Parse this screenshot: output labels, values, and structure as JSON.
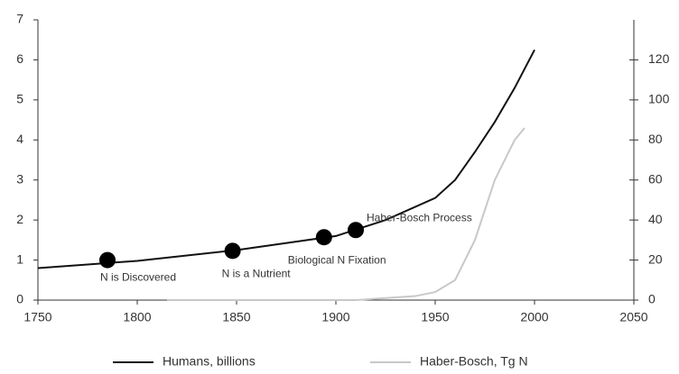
{
  "chart_data": {
    "type": "line",
    "xlim": [
      1750,
      2050
    ],
    "xticks": [
      1750,
      1800,
      1850,
      1900,
      1950,
      2000,
      2050
    ],
    "ylim": [
      0,
      7
    ],
    "yticks": [
      0,
      1,
      2,
      3,
      4,
      5,
      6,
      7
    ],
    "y2lim": [
      0,
      140
    ],
    "y2ticks": [
      0,
      20,
      40,
      60,
      80,
      100,
      120
    ],
    "series": [
      {
        "name": "Humans, billions",
        "color": "#111111",
        "x": [
          1750,
          1800,
          1850,
          1900,
          1925,
          1950,
          1960,
          1970,
          1980,
          1990,
          2000
        ],
        "values": [
          0.8,
          0.98,
          1.25,
          1.6,
          2.0,
          2.55,
          3.0,
          3.7,
          4.45,
          5.3,
          6.25
        ]
      },
      {
        "name": "Haber-Bosch, Tg N",
        "color": "#c8c8c8",
        "axis": "y2",
        "x": [
          1815,
          1910,
          1940,
          1950,
          1960,
          1970,
          1980,
          1990,
          1995
        ],
        "values": [
          0,
          0,
          2,
          4,
          10,
          30,
          60,
          80,
          86
        ]
      }
    ],
    "annotations": [
      {
        "text": "N is Discovered",
        "x": 1785,
        "y": 1.0
      },
      {
        "text": "N is a Nutrient",
        "x": 1848,
        "y": 1.23
      },
      {
        "text": "Biological N Fixation",
        "x": 1894,
        "y": 1.57
      },
      {
        "text": "Haber-Bosch Process",
        "x": 1910,
        "y": 1.75
      }
    ]
  }
}
